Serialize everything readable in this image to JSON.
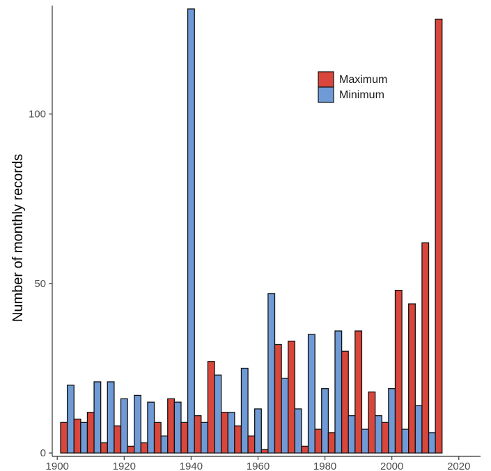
{
  "chart_data": {
    "type": "bar",
    "title": "",
    "xlabel": "",
    "ylabel": "Number of monthly records",
    "x_ticks": [
      "1900",
      "1920",
      "1940",
      "1960",
      "1980",
      "2000",
      "2020"
    ],
    "y_ticks": [
      "0",
      "50",
      "100"
    ],
    "xlim": [
      1898.5,
      2026.5
    ],
    "ylim": [
      -1,
      132
    ],
    "bin_width_years": 4,
    "grid": false,
    "legend_position": "top-right",
    "bin_starts": [
      1901,
      1905,
      1909,
      1913,
      1917,
      1921,
      1925,
      1929,
      1933,
      1937,
      1941,
      1945,
      1949,
      1953,
      1957,
      1961,
      1965,
      1969,
      1973,
      1977,
      1981,
      1985,
      1989,
      1993,
      1997,
      2001,
      2005,
      2009,
      2013,
      2017
    ],
    "series": [
      {
        "name": "Maximum",
        "color": "#d9463b",
        "values": [
          9,
          10,
          12,
          3,
          8,
          2,
          3,
          9,
          16,
          9,
          11,
          27,
          12,
          8,
          5,
          1,
          32,
          33,
          2,
          7,
          6,
          30,
          36,
          18,
          9,
          48,
          44,
          62,
          128,
          0
        ]
      },
      {
        "name": "Minimum",
        "color": "#6f9ad6",
        "values": [
          20,
          9,
          21,
          21,
          16,
          17,
          15,
          5,
          15,
          131,
          9,
          23,
          12,
          25,
          13,
          47,
          22,
          13,
          35,
          19,
          36,
          11,
          7,
          11,
          19,
          7,
          14,
          6,
          0,
          0
        ]
      }
    ]
  }
}
